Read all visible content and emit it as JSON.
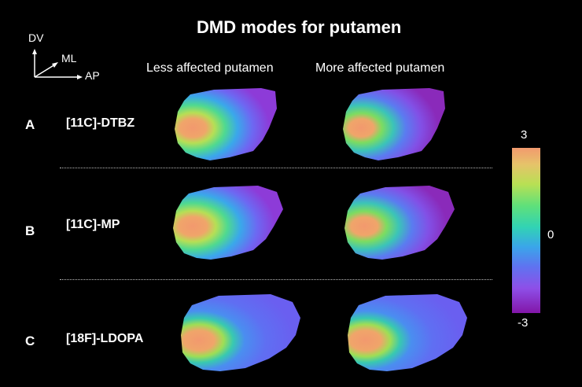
{
  "title": "DMD modes for putamen",
  "axes": {
    "dv": "DV",
    "ml": "ML",
    "ap": "AP"
  },
  "columns": [
    "Less affected putamen",
    "More affected putamen"
  ],
  "rows": [
    {
      "letter": "A",
      "tracer": "[11C]-DTBZ"
    },
    {
      "letter": "B",
      "tracer": "[11C]-MP"
    },
    {
      "letter": "C",
      "tracer": "[18F]-LDOPA"
    }
  ],
  "colorbar": {
    "max": "3",
    "mid": "0",
    "min": "-3"
  }
}
